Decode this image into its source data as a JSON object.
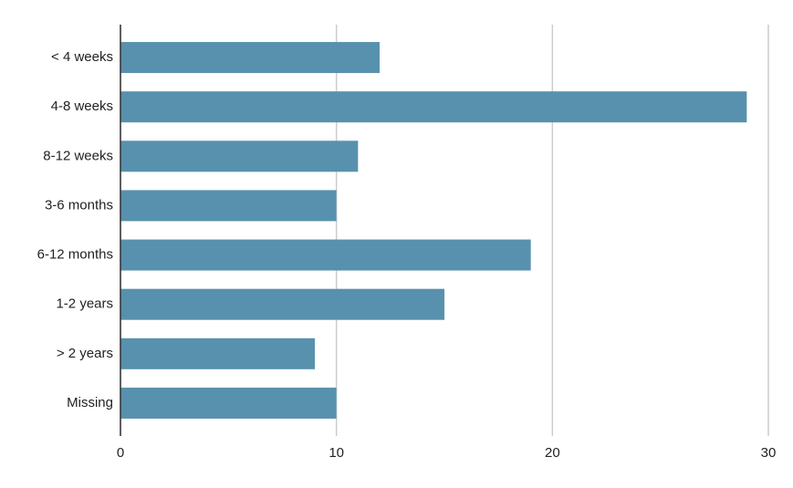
{
  "chart_data": {
    "type": "barh",
    "categories": [
      "< 4 weeks",
      "4-8 weeks",
      "8-12 weeks",
      "3-6 months",
      "6-12 months",
      "1-2 years",
      "> 2 years",
      "Missing"
    ],
    "values": [
      12,
      29,
      11,
      10,
      19,
      15,
      9,
      10
    ],
    "color": "#5891ad",
    "xlim": [
      0,
      30
    ],
    "xticks": [
      0,
      10,
      20,
      30
    ],
    "grid": true
  }
}
